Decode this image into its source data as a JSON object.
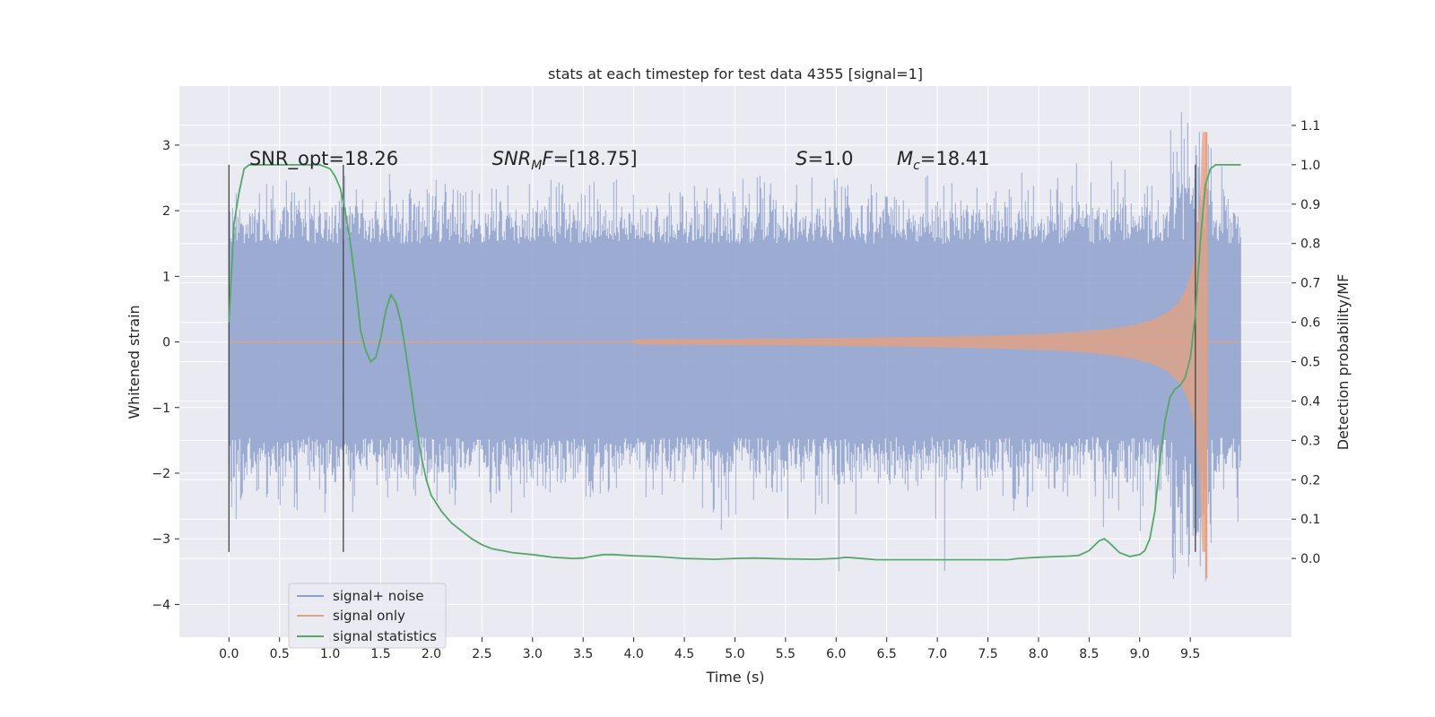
{
  "chart_data": {
    "type": "line",
    "title": "stats at each timestep for test data 4355 [signal=1]",
    "xlabel": "Time (s)",
    "ylabel": "Whitened strain",
    "ylabel_right": "Detection probability/MF",
    "xlim": [
      -0.49,
      10.5
    ],
    "ylim": [
      -4.5,
      3.9
    ],
    "ylim_right": [
      -0.2,
      1.2
    ],
    "x_ticks": [
      0.0,
      0.5,
      1.0,
      1.5,
      2.0,
      2.5,
      3.0,
      3.5,
      4.0,
      4.5,
      5.0,
      5.5,
      6.0,
      6.5,
      7.0,
      7.5,
      8.0,
      8.5,
      9.0,
      9.5
    ],
    "x_tick_labels": [
      "0.0",
      "0.5",
      "1.0",
      "1.5",
      "2.0",
      "2.5",
      "3.0",
      "3.5",
      "4.0",
      "4.5",
      "5.0",
      "5.5",
      "6.0",
      "6.5",
      "7.0",
      "7.5",
      "8.0",
      "8.5",
      "9.0",
      "9.5"
    ],
    "y_ticks": [
      -4,
      -3,
      -2,
      -1,
      0,
      1,
      2,
      3
    ],
    "y_tick_labels": [
      "−4",
      "−3",
      "−2",
      "−1",
      "0",
      "1",
      "2",
      "3"
    ],
    "y2_ticks": [
      0.0,
      0.1,
      0.2,
      0.3,
      0.4,
      0.5,
      0.6,
      0.7,
      0.8,
      0.9,
      1.0,
      1.1
    ],
    "y2_tick_labels": [
      "0.0",
      "0.1",
      "0.2",
      "0.3",
      "0.4",
      "0.5",
      "0.6",
      "0.7",
      "0.8",
      "0.9",
      "1.0",
      "1.1"
    ],
    "grid": true,
    "legend_position": "lower-left",
    "series": [
      {
        "name": "signal+ noise",
        "color": "#8da0cb",
        "axis": "left",
        "x_range": [
          0.0,
          10.0
        ],
        "sample_rate": 2048,
        "noise_envelope": 1.0,
        "peak_range": [
          -3.8,
          3.5
        ]
      },
      {
        "name": "signal only",
        "color": "#e5a07f",
        "axis": "left",
        "kind": "chirp",
        "x_range": [
          0.0,
          10.0
        ],
        "merger_time": 9.66,
        "peak_amplitude": 3.2
      },
      {
        "name": "signal statistics",
        "color": "#55a868",
        "axis": "right",
        "x": [
          0.0,
          0.05,
          0.1,
          0.15,
          0.2,
          0.3,
          0.4,
          0.5,
          0.6,
          0.7,
          0.8,
          0.9,
          1.0,
          1.05,
          1.1,
          1.15,
          1.2,
          1.25,
          1.3,
          1.35,
          1.4,
          1.45,
          1.5,
          1.55,
          1.6,
          1.65,
          1.7,
          1.75,
          1.8,
          1.85,
          1.9,
          1.95,
          2.0,
          2.1,
          2.2,
          2.3,
          2.4,
          2.5,
          2.6,
          2.7,
          2.8,
          3.0,
          3.2,
          3.4,
          3.5,
          3.6,
          3.7,
          3.8,
          4.0,
          4.2,
          4.5,
          4.8,
          5.0,
          5.2,
          5.5,
          5.8,
          6.0,
          6.1,
          6.2,
          6.4,
          6.7,
          7.0,
          7.3,
          7.6,
          7.7,
          7.8,
          8.0,
          8.2,
          8.3,
          8.4,
          8.5,
          8.6,
          8.65,
          8.7,
          8.8,
          8.9,
          9.0,
          9.05,
          9.1,
          9.15,
          9.2,
          9.25,
          9.3,
          9.35,
          9.4,
          9.45,
          9.5,
          9.55,
          9.6,
          9.65,
          9.7,
          9.75,
          9.8,
          9.9,
          10.0
        ],
        "values": [
          0.6,
          0.85,
          0.93,
          0.99,
          1.0,
          1.0,
          1.0,
          1.0,
          1.0,
          1.0,
          1.0,
          1.0,
          0.99,
          0.97,
          0.94,
          0.88,
          0.8,
          0.7,
          0.58,
          0.53,
          0.5,
          0.51,
          0.56,
          0.63,
          0.67,
          0.65,
          0.6,
          0.52,
          0.43,
          0.34,
          0.26,
          0.2,
          0.16,
          0.12,
          0.09,
          0.07,
          0.05,
          0.035,
          0.025,
          0.02,
          0.015,
          0.01,
          0.003,
          0.0,
          0.001,
          0.006,
          0.01,
          0.01,
          0.007,
          0.005,
          0.0,
          -0.002,
          0.0,
          0.001,
          -0.001,
          -0.002,
          0.0,
          0.003,
          0.001,
          -0.003,
          -0.003,
          -0.003,
          -0.003,
          -0.003,
          -0.003,
          0.0,
          0.003,
          0.005,
          0.006,
          0.008,
          0.02,
          0.045,
          0.05,
          0.04,
          0.015,
          0.005,
          0.01,
          0.02,
          0.05,
          0.12,
          0.25,
          0.35,
          0.41,
          0.43,
          0.44,
          0.46,
          0.51,
          0.62,
          0.81,
          0.95,
          0.99,
          1.0,
          1.0,
          1.0,
          1.0
        ]
      }
    ],
    "vlines": [
      {
        "x": 0.0,
        "y_range": [
          -3.2,
          2.7
        ]
      },
      {
        "x": 1.13,
        "y_range": [
          -3.2,
          2.7
        ]
      },
      {
        "x": 9.55,
        "y_range": [
          -3.2,
          2.7
        ]
      }
    ],
    "annotations": [
      {
        "id": "snr-opt",
        "text": "SNR_opt=18.26",
        "x": 0.2,
        "y": 2.7
      },
      {
        "id": "snr-mf",
        "main": "SNR",
        "sub": "M",
        "rest": "F=[18.75]",
        "x": 2.6,
        "y": 2.7
      },
      {
        "id": "s-value",
        "main": "S",
        "sub": "",
        "rest": "=1.0",
        "x": 5.6,
        "y": 2.7
      },
      {
        "id": "mc-value",
        "main": "M",
        "sub": "c",
        "rest": "=18.41",
        "x": 6.6,
        "y": 2.7
      }
    ]
  }
}
